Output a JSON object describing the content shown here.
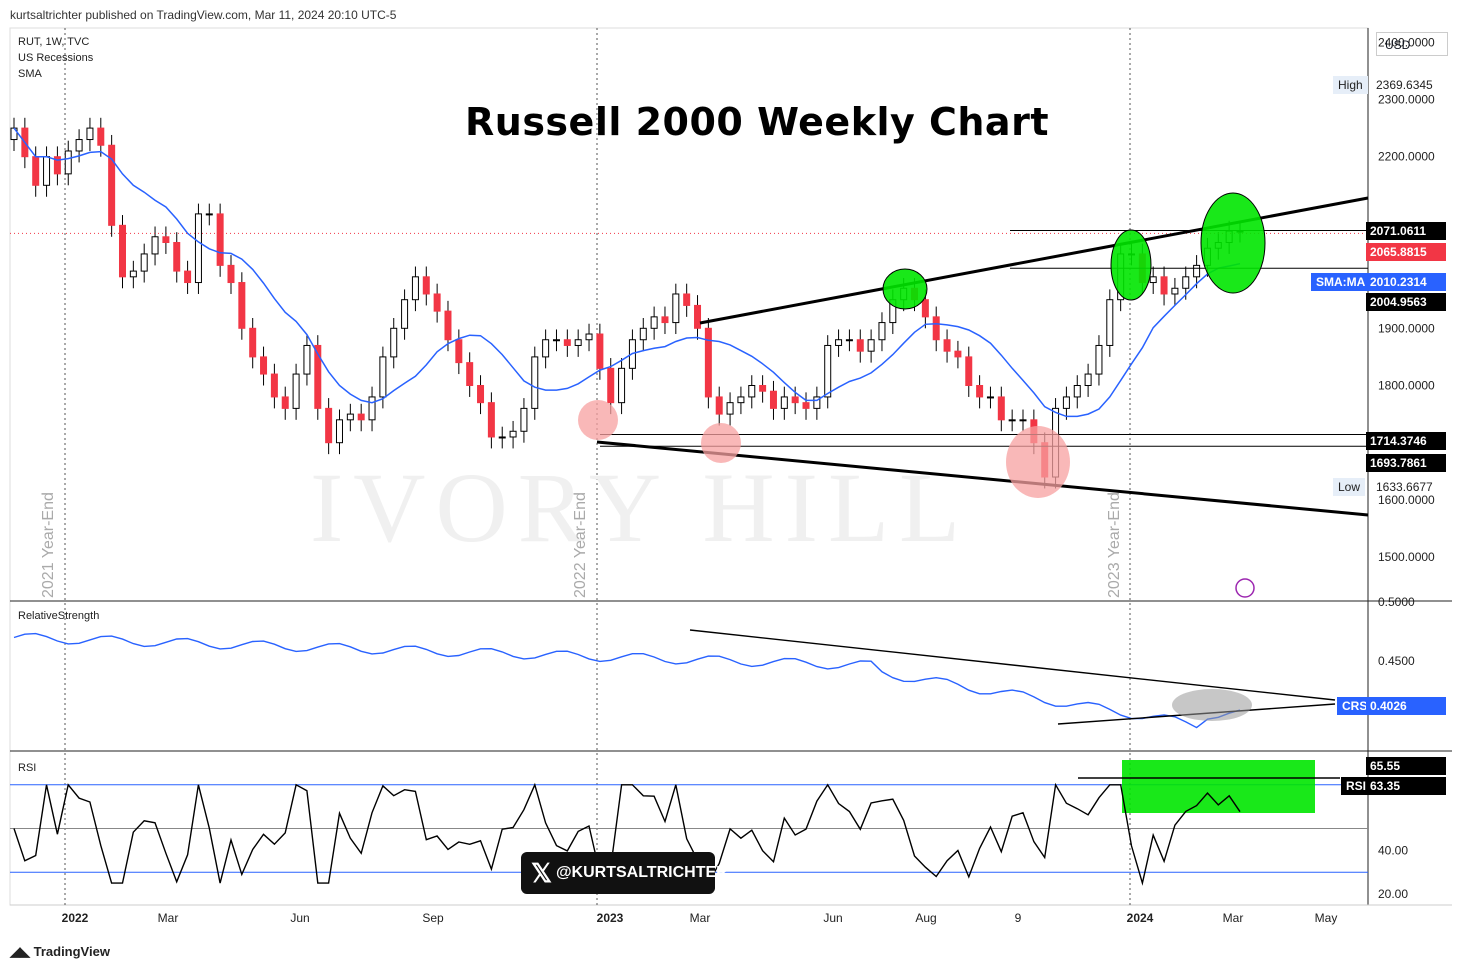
{
  "header": {
    "published": "kurtsaltrichter published on TradingView.com, Mar 11, 2024 20:10 UTC-5",
    "symbol_line": "RUT, 1W, TVC",
    "indicator1": "US Recessions",
    "indicator2": "SMA",
    "currency": "USD"
  },
  "title": "Russell 2000 Weekly Chart",
  "watermark": "IVORY HILL",
  "year_end_labels": [
    "2021 Year-End",
    "2022 Year-End",
    "2023 Year-End"
  ],
  "handle": "@KURTSALTRICHTER",
  "footer": "TradingView",
  "colors": {
    "up": "#ffffff",
    "down": "#f23645",
    "sma": "#2962ff",
    "rs": "#2962ff",
    "rsi": "#000000",
    "rsi_band": "#2962ff",
    "highlight_green": "#00e600",
    "highlight_red": "#f7a0a0",
    "highlight_gray": "#999999"
  },
  "panes": {
    "rs_label": "RelativeStrength",
    "rsi_label": "RSI"
  },
  "price_tags": {
    "high_label": "High",
    "high_value": "2369.6345",
    "low_label": "Low",
    "low_value": "1633.6677",
    "tag1": "2071.0611",
    "tag2": "2065.8815",
    "sma_label": "SMA:MA",
    "sma_value": "2010.2314",
    "tag4": "2004.9563",
    "tag5": "1714.3746",
    "tag6": "1693.7861",
    "crs_label": "CRS",
    "crs_value": "0.4026",
    "rsi_label": "RSI",
    "rsi_val1": "65.55",
    "rsi_val2": "63.35"
  },
  "chart_data": {
    "type": "candlestick",
    "title": "Russell 2000 Weekly Chart",
    "price_axis": {
      "ticks": [
        2400,
        2300,
        2200,
        2100,
        1900,
        1800,
        1600,
        1500
      ],
      "tick_labels": [
        "2400.0000",
        "2300.0000",
        "2200.0000",
        "",
        "1900.0000",
        "1800.0000",
        "1600.0000",
        "1500.0000"
      ],
      "ylim": [
        1425,
        2425
      ]
    },
    "rs_axis": {
      "ticks": [
        0.5,
        0.45
      ],
      "tick_labels": [
        "0.5000",
        "0.4500"
      ],
      "ylim": [
        0.375,
        0.5
      ]
    },
    "rsi_axis": {
      "ticks": [
        40,
        20
      ],
      "tick_labels": [
        "40.00",
        "20.00"
      ],
      "ylim": [
        15,
        85
      ],
      "bands": [
        70,
        50,
        30
      ]
    },
    "x_axis_labels": [
      "2022",
      "Mar",
      "Jun",
      "Sep",
      "2023",
      "Mar",
      "Jun",
      "Aug",
      "9",
      "2024",
      "Mar",
      "May"
    ],
    "close": [
      2250,
      2200,
      2150,
      2200,
      2170,
      2210,
      2230,
      2250,
      2220,
      2080,
      1990,
      2000,
      2030,
      2060,
      2050,
      2000,
      1980,
      2100,
      2100,
      2010,
      1980,
      1900,
      1850,
      1820,
      1780,
      1760,
      1820,
      1870,
      1760,
      1700,
      1740,
      1750,
      1740,
      1780,
      1850,
      1900,
      1950,
      1990,
      1960,
      1930,
      1880,
      1840,
      1800,
      1770,
      1710,
      1710,
      1720,
      1760,
      1850,
      1880,
      1880,
      1870,
      1880,
      1890,
      1830,
      1770,
      1830,
      1880,
      1900,
      1920,
      1910,
      1960,
      1940,
      1900,
      1780,
      1750,
      1770,
      1780,
      1800,
      1790,
      1760,
      1780,
      1770,
      1760,
      1780,
      1870,
      1880,
      1880,
      1860,
      1880,
      1910,
      1950,
      1970,
      1950,
      1920,
      1880,
      1860,
      1850,
      1800,
      1780,
      1780,
      1740,
      1740,
      1740,
      1700,
      1640,
      1760,
      1780,
      1800,
      1820,
      1870,
      1950,
      2030,
      2030,
      1980,
      1990,
      1960,
      1970,
      1990,
      2010,
      2040,
      2050,
      2070,
      2070
    ]
  }
}
